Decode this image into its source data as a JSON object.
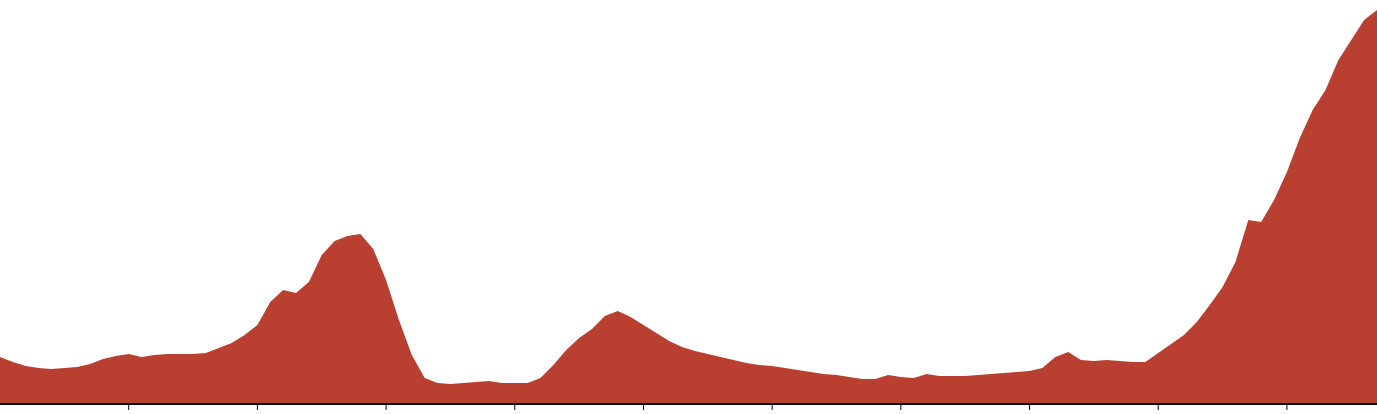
{
  "chart_data": {
    "type": "area",
    "color": "#b94030",
    "x": [
      0,
      1,
      2,
      3,
      4,
      5,
      6,
      7,
      8,
      9,
      10,
      11,
      12,
      13,
      14,
      15,
      16,
      17,
      18,
      19,
      20,
      21,
      22,
      23,
      24,
      25,
      26,
      27,
      28,
      29,
      30,
      31,
      32,
      33,
      34,
      35,
      36,
      37,
      38,
      39,
      40,
      41,
      42,
      43,
      44,
      45,
      46,
      47,
      48,
      49,
      50,
      51,
      52,
      53,
      54,
      55,
      56,
      57,
      58,
      59,
      60,
      61,
      62,
      63,
      64,
      65,
      66,
      67,
      68,
      69,
      70,
      71,
      72,
      73,
      74,
      75,
      76,
      77,
      78,
      79,
      80,
      81,
      82,
      83,
      84,
      85,
      86,
      87,
      88,
      89,
      90,
      91,
      92,
      93,
      94,
      95,
      96,
      97,
      98,
      99,
      100,
      101,
      102,
      103,
      104,
      105,
      106,
      107
    ],
    "values": [
      47,
      42,
      38,
      36,
      35,
      36,
      37,
      40,
      45,
      48,
      50,
      47,
      49,
      50,
      50,
      50,
      51,
      56,
      61,
      69,
      79,
      102,
      114,
      111,
      122,
      149,
      163,
      168,
      170,
      155,
      124,
      84,
      49,
      26,
      21,
      20,
      21,
      22,
      23,
      21,
      21,
      21,
      26,
      39,
      54,
      66,
      75,
      88,
      93,
      87,
      79,
      71,
      63,
      57,
      53,
      50,
      47,
      44,
      41,
      39,
      38,
      36,
      34,
      32,
      30,
      29,
      27,
      25,
      25,
      29,
      27,
      26,
      30,
      28,
      28,
      28,
      29,
      30,
      31,
      32,
      33,
      36,
      47,
      52,
      44,
      43,
      44,
      43,
      42,
      42,
      51,
      60,
      69,
      82,
      99,
      117,
      142,
      184,
      182,
      204,
      232,
      266,
      294,
      314,
      344,
      364,
      384,
      394
    ],
    "xlim": [
      0,
      107
    ],
    "ylim": [
      0,
      400
    ],
    "xticks": [
      10,
      20,
      30,
      40,
      50,
      60,
      70,
      80,
      90,
      100
    ]
  }
}
